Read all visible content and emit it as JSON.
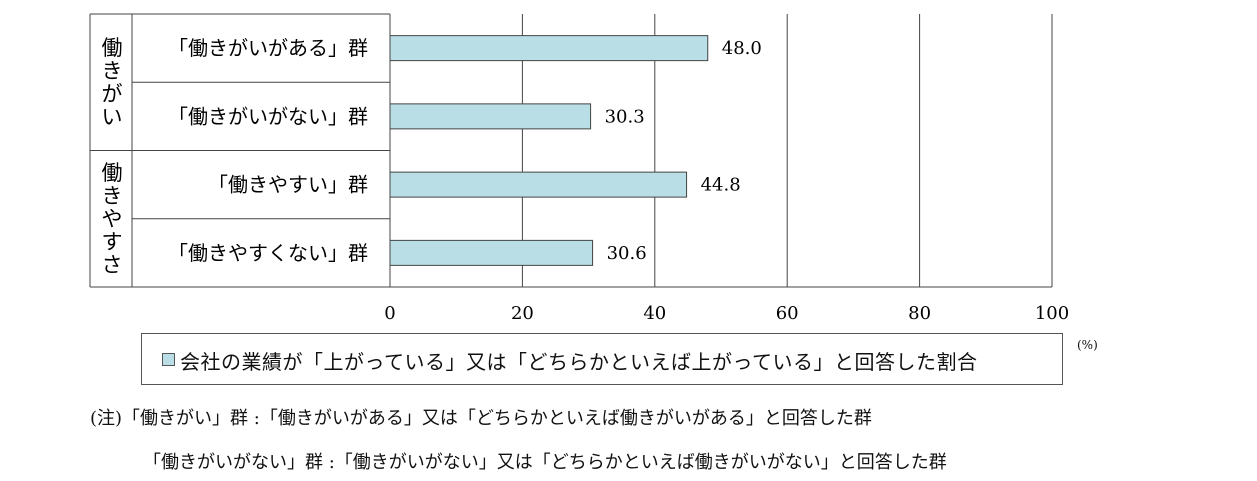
{
  "chart_data": {
    "type": "bar",
    "orientation": "horizontal",
    "groups": [
      {
        "label": "働きがい",
        "categories": [
          "「働きがいがある」群",
          "「働きがいがない」群"
        ]
      },
      {
        "label": "働きやすさ",
        "categories": [
          "「働きやすい」群",
          "「働きやすくない」群"
        ]
      }
    ],
    "categories": [
      "「働きがいがある」群",
      "「働きがいがない」群",
      "「働きやすい」群",
      "「働きやすくない」群"
    ],
    "values": [
      48.0,
      30.3,
      44.8,
      30.6
    ],
    "value_labels": [
      "48.0",
      "30.3",
      "44.8",
      "30.6"
    ],
    "xlim": [
      0,
      100
    ],
    "x_ticks": [
      "0",
      "20",
      "40",
      "60",
      "80",
      "100"
    ],
    "unit": "(%)",
    "grid": true,
    "legend": "bottom",
    "series": [
      {
        "name": "会社の業績が「上がっている」又は「どちらかといえば上がっている」と回答した割合",
        "values": [
          48.0,
          30.3,
          44.8,
          30.6
        ]
      }
    ],
    "colors": {
      "bar": "#b9dee6",
      "bar_border": "#444444"
    }
  },
  "notes": {
    "line1": "(注)「働きがい」群 :「働きがいがある」又は「どちらかといえば働きがいがある」と回答した群",
    "line2": "「働きがいがない」群 :「働きがいがない」又は「どちらかといえば働きがいがない」と回答した群"
  }
}
